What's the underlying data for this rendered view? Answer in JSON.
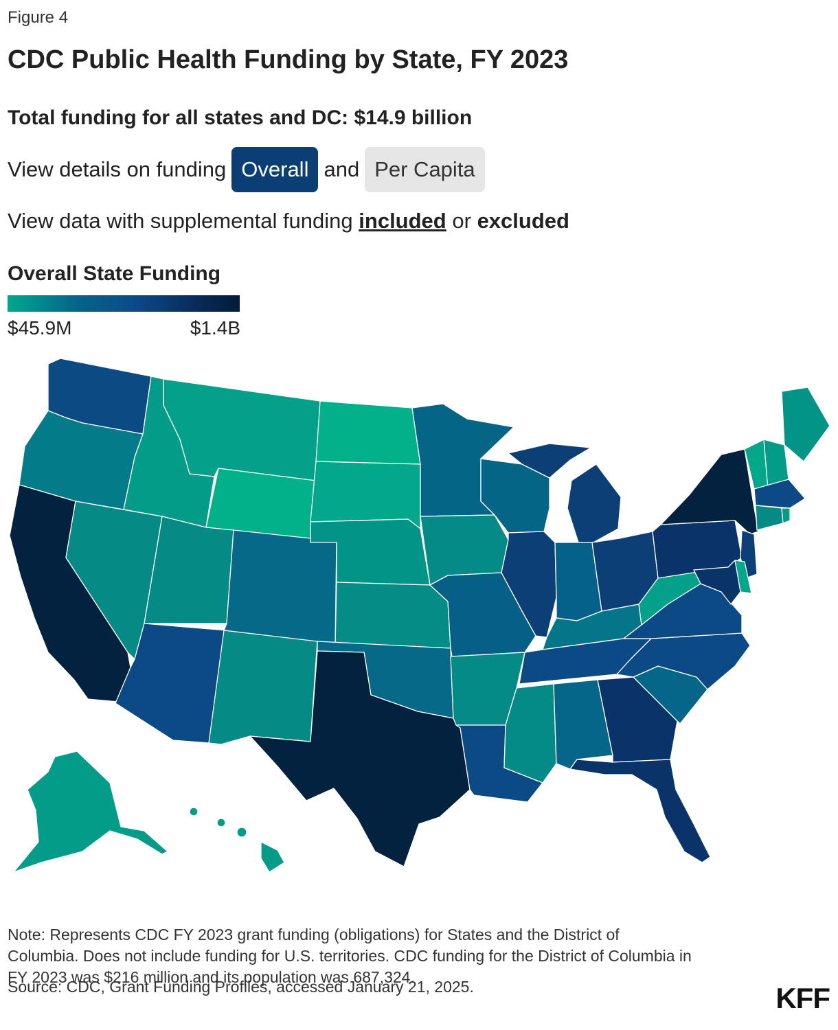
{
  "header": {
    "figure_label": "Figure 4",
    "title": "CDC Public Health Funding by State, FY 2023",
    "subtitle": "Total funding for all states and DC: $14.9 billion"
  },
  "controls": {
    "view_prefix": "View details on funding",
    "overall_label": "Overall",
    "and_word": "and",
    "per_capita_label": "Per Capita",
    "supp_prefix": "View data with supplemental funding",
    "included_label": "included",
    "or_word": "or",
    "excluded_label": "excluded",
    "active_view": "Overall",
    "active_supplemental": "included"
  },
  "legend": {
    "title": "Overall State Funding",
    "min_label": "$45.9M",
    "max_label": "$1.4B",
    "color_low": "#00a88f",
    "color_high": "#021c38"
  },
  "map": {
    "type": "choropleth",
    "states_shown": [
      "WA",
      "OR",
      "CA",
      "NV",
      "ID",
      "MT",
      "WY",
      "UT",
      "AZ",
      "CO",
      "NM",
      "ND",
      "SD",
      "NE",
      "KS",
      "OK",
      "TX",
      "MN",
      "IA",
      "MO",
      "AR",
      "LA",
      "WI",
      "IL",
      "MI",
      "IN",
      "OH",
      "KY",
      "TN",
      "MS",
      "AL",
      "GA",
      "FL",
      "SC",
      "NC",
      "VA",
      "WV",
      "PA",
      "NY",
      "ME",
      "VT",
      "NH",
      "MA",
      "CT",
      "RI",
      "NJ",
      "DE",
      "MD",
      "AK",
      "HI"
    ]
  },
  "footer": {
    "note": "Note: Represents CDC FY 2023 grant funding (obligations) for States and the District of Columbia. Does not include funding for U.S. territories. CDC funding for the District of Columbia in FY 2023 was $216 million and its population was 687,324.",
    "source": "Source: CDC, Grant Funding Profiles, accessed January 21, 2025.",
    "logo": "KFF"
  }
}
